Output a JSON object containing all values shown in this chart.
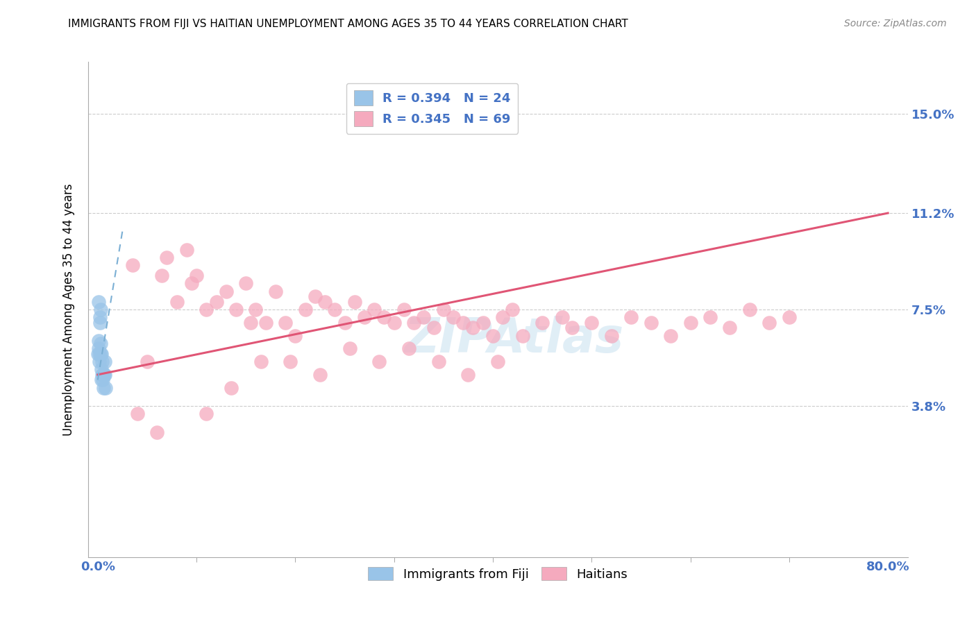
{
  "title": "IMMIGRANTS FROM FIJI VS HAITIAN UNEMPLOYMENT AMONG AGES 35 TO 44 YEARS CORRELATION CHART",
  "source": "Source: ZipAtlas.com",
  "ylabel": "Unemployment Among Ages 35 to 44 years",
  "xlim": [
    -1,
    82
  ],
  "ylim": [
    -2,
    17
  ],
  "ytick_vals": [
    3.8,
    7.5,
    11.2,
    15.0
  ],
  "ytick_labels": [
    "3.8%",
    "7.5%",
    "11.2%",
    "15.0%"
  ],
  "xtick_vals": [
    0,
    80
  ],
  "xtick_labels": [
    "0.0%",
    "80.0%"
  ],
  "fiji_color": "#99C4E8",
  "haiti_color": "#F5AABE",
  "fiji_trend_color": "#7BAFD4",
  "haiti_trend_color": "#E05575",
  "legend_text_color": "#4472C4",
  "fiji_r": 0.394,
  "fiji_n": 24,
  "haiti_r": 0.345,
  "haiti_n": 69,
  "watermark": "ZIPAtlas",
  "fiji_x": [
    0.05,
    0.08,
    0.1,
    0.12,
    0.15,
    0.18,
    0.2,
    0.25,
    0.28,
    0.3,
    0.33,
    0.35,
    0.38,
    0.4,
    0.42,
    0.45,
    0.48,
    0.5,
    0.55,
    0.6,
    0.65,
    0.7,
    0.75,
    0.8
  ],
  "fiji_y": [
    5.8,
    6.3,
    7.8,
    6.0,
    5.5,
    5.8,
    7.0,
    7.2,
    5.8,
    6.2,
    7.5,
    5.8,
    4.8,
    5.2,
    5.5,
    5.0,
    4.8,
    5.0,
    4.5,
    5.0,
    5.0,
    5.5,
    5.0,
    4.5
  ],
  "haiti_x": [
    3.5,
    5.0,
    6.5,
    7.0,
    8.0,
    9.5,
    10.0,
    11.0,
    12.0,
    13.0,
    14.0,
    15.0,
    15.5,
    16.0,
    17.0,
    18.0,
    19.0,
    20.0,
    21.0,
    22.0,
    23.0,
    24.0,
    25.0,
    26.0,
    27.0,
    28.0,
    29.0,
    30.0,
    31.0,
    32.0,
    33.0,
    34.0,
    35.0,
    36.0,
    37.0,
    38.0,
    39.0,
    40.0,
    41.0,
    42.0,
    43.0,
    45.0,
    47.0,
    48.0,
    50.0,
    52.0,
    54.0,
    56.0,
    58.0,
    60.0,
    62.0,
    64.0,
    66.0,
    68.0,
    70.0,
    4.0,
    6.0,
    9.0,
    11.0,
    13.5,
    16.5,
    19.5,
    22.5,
    25.5,
    28.5,
    31.5,
    34.5,
    37.5,
    40.5
  ],
  "haiti_y": [
    9.2,
    5.5,
    8.8,
    9.5,
    7.8,
    8.5,
    8.8,
    7.5,
    7.8,
    8.2,
    7.5,
    8.5,
    7.0,
    7.5,
    7.0,
    8.2,
    7.0,
    6.5,
    7.5,
    8.0,
    7.8,
    7.5,
    7.0,
    7.8,
    7.2,
    7.5,
    7.2,
    7.0,
    7.5,
    7.0,
    7.2,
    6.8,
    7.5,
    7.2,
    7.0,
    6.8,
    7.0,
    6.5,
    7.2,
    7.5,
    6.5,
    7.0,
    7.2,
    6.8,
    7.0,
    6.5,
    7.2,
    7.0,
    6.5,
    7.0,
    7.2,
    6.8,
    7.5,
    7.0,
    7.2,
    3.5,
    2.8,
    9.8,
    3.5,
    4.5,
    5.5,
    5.5,
    5.0,
    6.0,
    5.5,
    6.0,
    5.5,
    5.0,
    5.5
  ],
  "fiji_trend_x0": 0.0,
  "fiji_trend_x1": 2.5,
  "fiji_trend_y0": 4.8,
  "fiji_trend_y1": 10.5,
  "haiti_trend_x0": 0.0,
  "haiti_trend_x1": 80.0,
  "haiti_trend_y0": 5.0,
  "haiti_trend_y1": 11.2
}
